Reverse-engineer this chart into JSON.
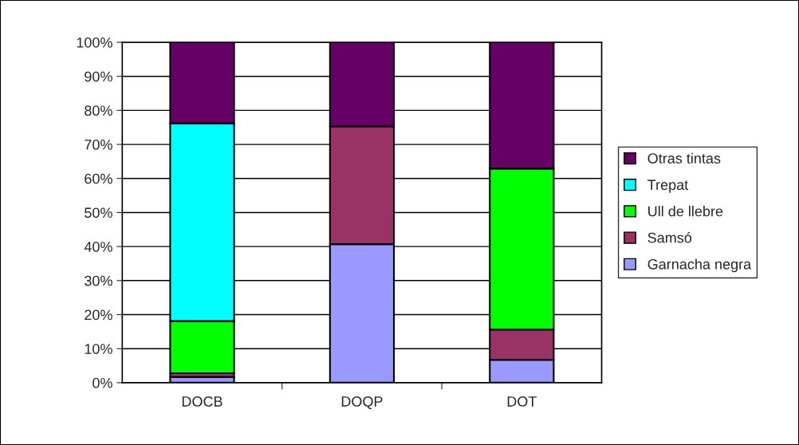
{
  "chart_data": {
    "type": "bar",
    "stacked": true,
    "categories": [
      "DOCB",
      "DOQP",
      "DOT"
    ],
    "series": [
      {
        "name": "Garnacha negra",
        "color": "#9999ff",
        "values": [
          1.7,
          40.7,
          6.7
        ]
      },
      {
        "name": "Samsó",
        "color": "#993366",
        "values": [
          1.1,
          34.6,
          8.9
        ]
      },
      {
        "name": "Ull de llebre",
        "color": "#00ff00",
        "values": [
          15.3,
          0,
          47.3
        ]
      },
      {
        "name": "Trepat",
        "color": "#00ffff",
        "values": [
          58.1,
          0,
          0
        ]
      },
      {
        "name": "Otras tintas",
        "color": "#660066",
        "values": [
          23.8,
          24.7,
          37.1
        ]
      }
    ],
    "ylim": [
      0,
      100
    ],
    "yticks": [
      {
        "value": 0,
        "label": "0%"
      },
      {
        "value": 10,
        "label": "10%"
      },
      {
        "value": 20,
        "label": "20%"
      },
      {
        "value": 30,
        "label": "30%"
      },
      {
        "value": 40,
        "label": "40%"
      },
      {
        "value": 50,
        "label": "50%"
      },
      {
        "value": 60,
        "label": "60%"
      },
      {
        "value": 70,
        "label": "70%"
      },
      {
        "value": 80,
        "label": "80%"
      },
      {
        "value": 90,
        "label": "90%"
      },
      {
        "value": 100,
        "label": "100%"
      }
    ],
    "grid": "y",
    "legend": "right"
  }
}
